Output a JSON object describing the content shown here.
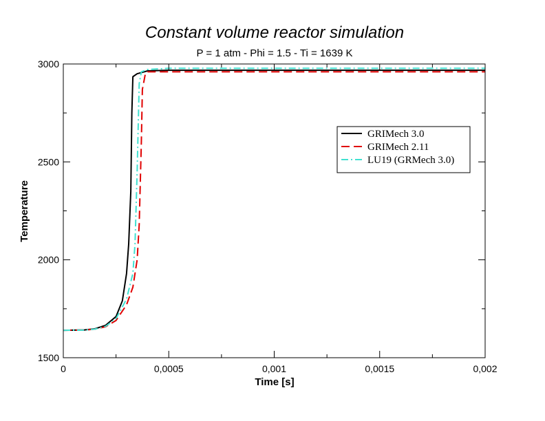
{
  "chart_data": {
    "type": "line",
    "title": "Constant volume reactor simulation",
    "subtitle": "P = 1 atm - Phi = 1.5 - Ti = 1639 K",
    "xlabel": "Time [s]",
    "ylabel": "Temperature",
    "xlim": [
      0,
      0.002
    ],
    "ylim": [
      1500,
      3000
    ],
    "x_ticks": [
      0,
      0.0005,
      0.001,
      0.0015,
      0.002
    ],
    "x_tick_labels": [
      "0",
      "0,0005",
      "0,001",
      "0,0015",
      "0,002"
    ],
    "y_ticks": [
      1500,
      2000,
      2500,
      3000
    ],
    "y_tick_labels": [
      "1500",
      "2000",
      "2500",
      "3000"
    ],
    "grid": false,
    "legend_position": "right, upper-middle",
    "series": [
      {
        "name": "GRIMech 3.0",
        "color": "#000000",
        "style": "solid",
        "points": [
          [
            0,
            1640
          ],
          [
            0.0001,
            1642
          ],
          [
            0.00015,
            1648
          ],
          [
            0.0002,
            1665
          ],
          [
            0.00025,
            1710
          ],
          [
            0.00028,
            1790
          ],
          [
            0.0003,
            1930
          ],
          [
            0.00031,
            2080
          ],
          [
            0.00032,
            2350
          ],
          [
            0.000325,
            2750
          ],
          [
            0.00033,
            2935
          ],
          [
            0.00035,
            2950
          ],
          [
            0.0004,
            2965
          ],
          [
            0.0005,
            2968
          ],
          [
            0.001,
            2968
          ],
          [
            0.0015,
            2968
          ],
          [
            0.002,
            2968
          ]
        ]
      },
      {
        "name": "GRIMech 2.11",
        "color": "#e00000",
        "style": "dashed",
        "points": [
          [
            0,
            1640
          ],
          [
            0.0001,
            1641
          ],
          [
            0.00015,
            1646
          ],
          [
            0.0002,
            1658
          ],
          [
            0.00025,
            1690
          ],
          [
            0.0003,
            1770
          ],
          [
            0.00033,
            1860
          ],
          [
            0.00035,
            2000
          ],
          [
            0.00036,
            2180
          ],
          [
            0.00037,
            2600
          ],
          [
            0.000375,
            2870
          ],
          [
            0.00039,
            2955
          ],
          [
            0.0004,
            2960
          ],
          [
            0.0005,
            2960
          ],
          [
            0.001,
            2960
          ],
          [
            0.0015,
            2960
          ],
          [
            0.002,
            2960
          ]
        ]
      },
      {
        "name": "LU19 (GRMech 3.0)",
        "color": "#40e0d0",
        "style": "dash-dot",
        "points": [
          [
            0,
            1640
          ],
          [
            0.0001,
            1641
          ],
          [
            0.00015,
            1646
          ],
          [
            0.0002,
            1660
          ],
          [
            0.00025,
            1700
          ],
          [
            0.0003,
            1800
          ],
          [
            0.00033,
            1930
          ],
          [
            0.00034,
            2080
          ],
          [
            0.00035,
            2450
          ],
          [
            0.00036,
            2900
          ],
          [
            0.00037,
            2960
          ],
          [
            0.0004,
            2972
          ],
          [
            0.0005,
            2978
          ],
          [
            0.001,
            2978
          ],
          [
            0.0015,
            2978
          ],
          [
            0.002,
            2978
          ]
        ]
      }
    ]
  }
}
